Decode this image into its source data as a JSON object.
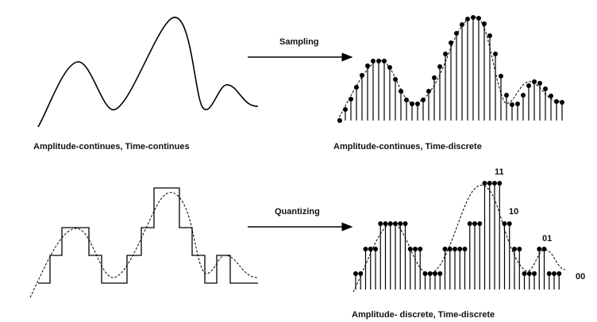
{
  "panels": {
    "continuous": {
      "caption": "Amplitude-continues, Time-continues"
    },
    "sampled": {
      "caption": "Amplitude-continues, Time-discrete"
    },
    "quantized_step": {
      "caption": ""
    },
    "quantized_sampled": {
      "caption": "Amplitude- discrete, Time-discrete"
    }
  },
  "arrows": {
    "sampling": {
      "label": "Sampling"
    },
    "quantizing": {
      "label": "Quantizing"
    }
  },
  "quantization_levels": [
    {
      "code": "11"
    },
    {
      "code": "10"
    },
    {
      "code": "01"
    },
    {
      "code": "00"
    }
  ],
  "colors": {
    "ink": "#000000",
    "background": "#ffffff"
  }
}
